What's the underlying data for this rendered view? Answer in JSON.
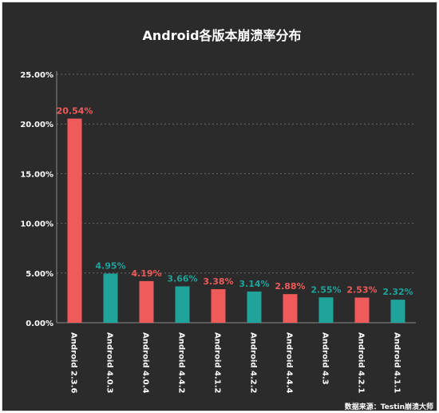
{
  "chart_data": {
    "type": "bar",
    "title": "Android各版本崩溃率分布",
    "categories": [
      "Android 2.3.6",
      "Android 4.0.3",
      "Android 4.0.4",
      "Android 4.4.2",
      "Android 4.1.2",
      "Android 4.2.2",
      "Android 4.4.4",
      "Android 4.3",
      "Android 4.2.1",
      "Android 4.1.1"
    ],
    "values": [
      20.54,
      4.95,
      4.19,
      3.66,
      3.38,
      3.14,
      2.88,
      2.55,
      2.53,
      2.32
    ],
    "data_labels": [
      "20.54%",
      "4.95%",
      "4.19%",
      "3.66%",
      "3.38%",
      "3.14%",
      "2.88%",
      "2.55%",
      "2.53%",
      "2.32%"
    ],
    "bar_colors": [
      "#ef5b5b",
      "#1fa39b",
      "#ef5b5b",
      "#1fa39b",
      "#ef5b5b",
      "#1fa39b",
      "#ef5b5b",
      "#1fa39b",
      "#ef5b5b",
      "#1fa39b"
    ],
    "y_ticks": [
      0,
      5,
      10,
      15,
      20,
      25
    ],
    "y_tick_labels": [
      "0.00%",
      "5.00%",
      "10.00%",
      "15.00%",
      "20.00%",
      "25.00%"
    ],
    "ylim": [
      0,
      25
    ],
    "grid": true,
    "xlabel": "",
    "ylabel": "",
    "background": "#2b2b2b"
  },
  "source_note": "数据来源：Testin崩溃大师"
}
